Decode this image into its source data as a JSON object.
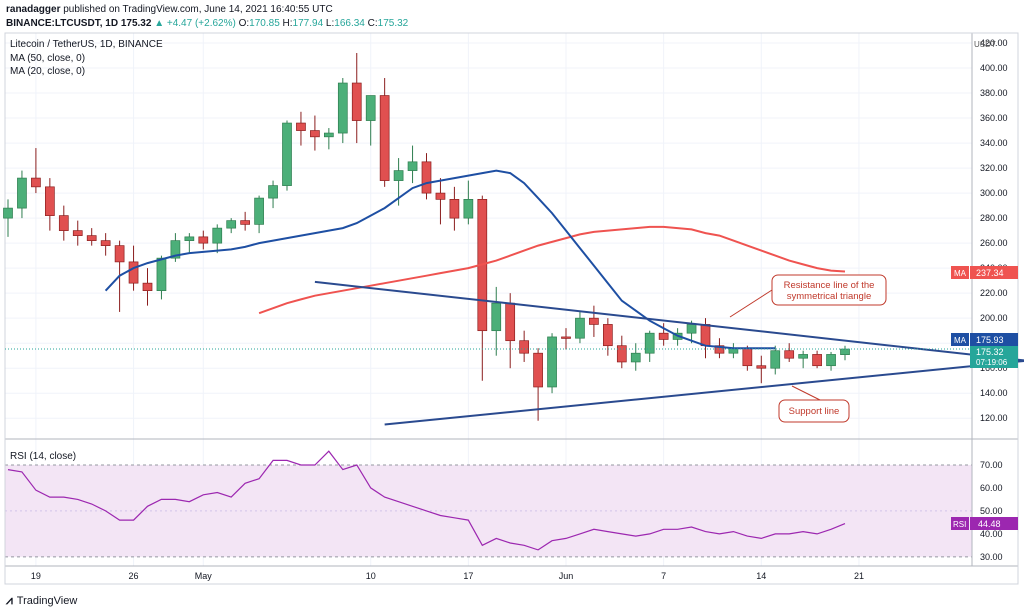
{
  "header": {
    "publisher": "ranadagger",
    "published_text": "published on TradingView.com, June 14, 2021 16:40:55 UTC",
    "symbol": "BINANCE:LTCUSDT, 1D",
    "last": "175.32",
    "change": "▲ +4.47 (+2.62%)",
    "o_label": "O:",
    "o": "170.85",
    "h_label": "H:",
    "h": "177.94",
    "l_label": "L:",
    "l": "166.34",
    "c_label": "C:",
    "c": "175.32"
  },
  "legend": {
    "title": "Litecoin / TetherUS, 1D, BINANCE",
    "ma50": "MA (50, close, 0)",
    "ma20": "MA (20, close, 0)",
    "rsi": "RSI (14, close)"
  },
  "price_badges": {
    "ma_label": "MA",
    "ma50_value": "237.34",
    "ma20_value": "175.93",
    "last_value": "175.32",
    "countdown": "07:19:06",
    "rsi_label": "RSI",
    "rsi_value": "44.48"
  },
  "annotations": {
    "resistance": [
      "Resistance line of the",
      "symmetrical triangle"
    ],
    "support": "Support line"
  },
  "footer": {
    "brand": "TradingView",
    "logo_icon": "tradingview-logo-icon"
  },
  "colors": {
    "up": "#26a69a",
    "down": "#ef5350",
    "candle_up": "#4caf79",
    "candle_down": "#e05050",
    "ma50": "#ef5350",
    "ma20": "#1e4fa3",
    "rsi_line": "#9c27b0",
    "rsi_band": "#f3e5f5",
    "trendline": "#2a4a8f",
    "annotation": "#c0392b"
  },
  "chart_data": {
    "type": "candlestick",
    "title": "Litecoin / TetherUS, 1D, BINANCE",
    "x_ticks": [
      "19",
      "26",
      "May",
      "10",
      "17",
      "Jun",
      "7",
      "14",
      "21"
    ],
    "x_tick_day_index": [
      2,
      9,
      14,
      26,
      33,
      40,
      47,
      54,
      61
    ],
    "y_unit": "USDT",
    "y_ticks": [
      120,
      140,
      160,
      180,
      200,
      220,
      240,
      260,
      280,
      300,
      320,
      340,
      360,
      380,
      400,
      420
    ],
    "ylim": [
      105,
      428
    ],
    "candles": [
      {
        "o": 280,
        "h": 295,
        "l": 265,
        "c": 288
      },
      {
        "o": 288,
        "h": 318,
        "l": 280,
        "c": 312
      },
      {
        "o": 312,
        "h": 336,
        "l": 300,
        "c": 305
      },
      {
        "o": 305,
        "h": 312,
        "l": 270,
        "c": 282
      },
      {
        "o": 282,
        "h": 290,
        "l": 262,
        "c": 270
      },
      {
        "o": 270,
        "h": 278,
        "l": 258,
        "c": 266
      },
      {
        "o": 266,
        "h": 272,
        "l": 258,
        "c": 262
      },
      {
        "o": 262,
        "h": 268,
        "l": 250,
        "c": 258
      },
      {
        "o": 258,
        "h": 262,
        "l": 205,
        "c": 245
      },
      {
        "o": 245,
        "h": 258,
        "l": 222,
        "c": 228
      },
      {
        "o": 228,
        "h": 240,
        "l": 210,
        "c": 222
      },
      {
        "o": 222,
        "h": 250,
        "l": 215,
        "c": 248
      },
      {
        "o": 248,
        "h": 268,
        "l": 245,
        "c": 262
      },
      {
        "o": 262,
        "h": 268,
        "l": 252,
        "c": 265
      },
      {
        "o": 265,
        "h": 270,
        "l": 255,
        "c": 260
      },
      {
        "o": 260,
        "h": 275,
        "l": 252,
        "c": 272
      },
      {
        "o": 272,
        "h": 280,
        "l": 268,
        "c": 278
      },
      {
        "o": 278,
        "h": 285,
        "l": 270,
        "c": 275
      },
      {
        "o": 275,
        "h": 298,
        "l": 268,
        "c": 296
      },
      {
        "o": 296,
        "h": 310,
        "l": 288,
        "c": 306
      },
      {
        "o": 306,
        "h": 358,
        "l": 302,
        "c": 356
      },
      {
        "o": 356,
        "h": 365,
        "l": 338,
        "c": 350
      },
      {
        "o": 350,
        "h": 362,
        "l": 334,
        "c": 345
      },
      {
        "o": 345,
        "h": 352,
        "l": 335,
        "c": 348
      },
      {
        "o": 348,
        "h": 392,
        "l": 340,
        "c": 388
      },
      {
        "o": 388,
        "h": 412,
        "l": 340,
        "c": 358
      },
      {
        "o": 358,
        "h": 378,
        "l": 338,
        "c": 378
      },
      {
        "o": 378,
        "h": 392,
        "l": 305,
        "c": 310
      },
      {
        "o": 310,
        "h": 328,
        "l": 290,
        "c": 318
      },
      {
        "o": 318,
        "h": 338,
        "l": 308,
        "c": 325
      },
      {
        "o": 325,
        "h": 332,
        "l": 295,
        "c": 300
      },
      {
        "o": 300,
        "h": 312,
        "l": 275,
        "c": 295
      },
      {
        "o": 295,
        "h": 305,
        "l": 270,
        "c": 280
      },
      {
        "o": 280,
        "h": 310,
        "l": 275,
        "c": 295
      },
      {
        "o": 295,
        "h": 298,
        "l": 150,
        "c": 190
      },
      {
        "o": 190,
        "h": 225,
        "l": 170,
        "c": 212
      },
      {
        "o": 212,
        "h": 220,
        "l": 160,
        "c": 182
      },
      {
        "o": 182,
        "h": 190,
        "l": 165,
        "c": 172
      },
      {
        "o": 172,
        "h": 176,
        "l": 118,
        "c": 145
      },
      {
        "o": 145,
        "h": 188,
        "l": 140,
        "c": 185
      },
      {
        "o": 185,
        "h": 192,
        "l": 175,
        "c": 184
      },
      {
        "o": 184,
        "h": 205,
        "l": 180,
        "c": 200
      },
      {
        "o": 200,
        "h": 210,
        "l": 185,
        "c": 195
      },
      {
        "o": 195,
        "h": 200,
        "l": 170,
        "c": 178
      },
      {
        "o": 178,
        "h": 186,
        "l": 160,
        "c": 165
      },
      {
        "o": 165,
        "h": 180,
        "l": 158,
        "c": 172
      },
      {
        "o": 172,
        "h": 190,
        "l": 165,
        "c": 188
      },
      {
        "o": 188,
        "h": 196,
        "l": 178,
        "c": 183
      },
      {
        "o": 183,
        "h": 192,
        "l": 178,
        "c": 188
      },
      {
        "o": 188,
        "h": 198,
        "l": 180,
        "c": 195
      },
      {
        "o": 195,
        "h": 200,
        "l": 168,
        "c": 178
      },
      {
        "o": 178,
        "h": 184,
        "l": 168,
        "c": 172
      },
      {
        "o": 172,
        "h": 180,
        "l": 168,
        "c": 176
      },
      {
        "o": 176,
        "h": 178,
        "l": 158,
        "c": 162
      },
      {
        "o": 162,
        "h": 170,
        "l": 148,
        "c": 160
      },
      {
        "o": 160,
        "h": 178,
        "l": 155,
        "c": 174
      },
      {
        "o": 174,
        "h": 180,
        "l": 165,
        "c": 168
      },
      {
        "o": 168,
        "h": 174,
        "l": 160,
        "c": 171
      },
      {
        "o": 171,
        "h": 174,
        "l": 160,
        "c": 162
      },
      {
        "o": 162,
        "h": 173,
        "l": 158,
        "c": 171
      },
      {
        "o": 170.85,
        "h": 177.94,
        "l": 166.34,
        "c": 175.32
      }
    ],
    "ma50": [
      204,
      208,
      212,
      215,
      218,
      220,
      222,
      224,
      226,
      228,
      230,
      232,
      234,
      236,
      238,
      240,
      243,
      246,
      250,
      254,
      258,
      261,
      264,
      267,
      269,
      270,
      271,
      272,
      273,
      273,
      272,
      271,
      268,
      266,
      262,
      258,
      254,
      250,
      246,
      243,
      240,
      238,
      237.34
    ],
    "ma50_start_index": 18,
    "ma20": [
      222,
      234,
      240,
      244,
      247,
      250,
      252,
      253,
      254,
      255,
      257,
      260,
      262,
      264,
      266,
      268,
      270,
      272,
      276,
      282,
      288,
      296,
      304,
      308,
      310,
      312,
      314,
      316,
      318,
      316,
      308,
      296,
      284,
      270,
      256,
      242,
      228,
      214,
      206,
      198,
      192,
      186,
      182,
      178,
      177,
      176,
      176,
      176,
      175.93
    ],
    "ma20_start_index": 7,
    "resistance_line": {
      "from": [
        22,
        229
      ],
      "to": [
        73,
        166
      ]
    },
    "support_line": {
      "from": [
        27,
        115
      ],
      "to": [
        73,
        166
      ]
    },
    "rsi": {
      "y_ticks": [
        30,
        40,
        50,
        60,
        70
      ],
      "ylim": [
        26,
        80
      ],
      "band": [
        30,
        70
      ],
      "values": [
        68,
        67,
        59,
        56,
        56,
        55,
        53,
        50,
        46,
        46,
        52,
        55,
        55,
        54,
        57,
        58,
        56,
        62,
        64,
        72,
        72,
        70,
        70,
        76,
        68,
        70,
        60,
        56,
        54,
        52,
        50,
        48,
        47,
        46,
        35,
        38,
        36,
        35,
        33,
        37,
        38,
        40,
        42,
        41,
        40,
        39,
        40,
        42,
        42,
        43,
        41,
        40,
        41,
        39,
        38,
        40,
        40,
        41,
        40,
        42,
        44.48
      ]
    }
  }
}
